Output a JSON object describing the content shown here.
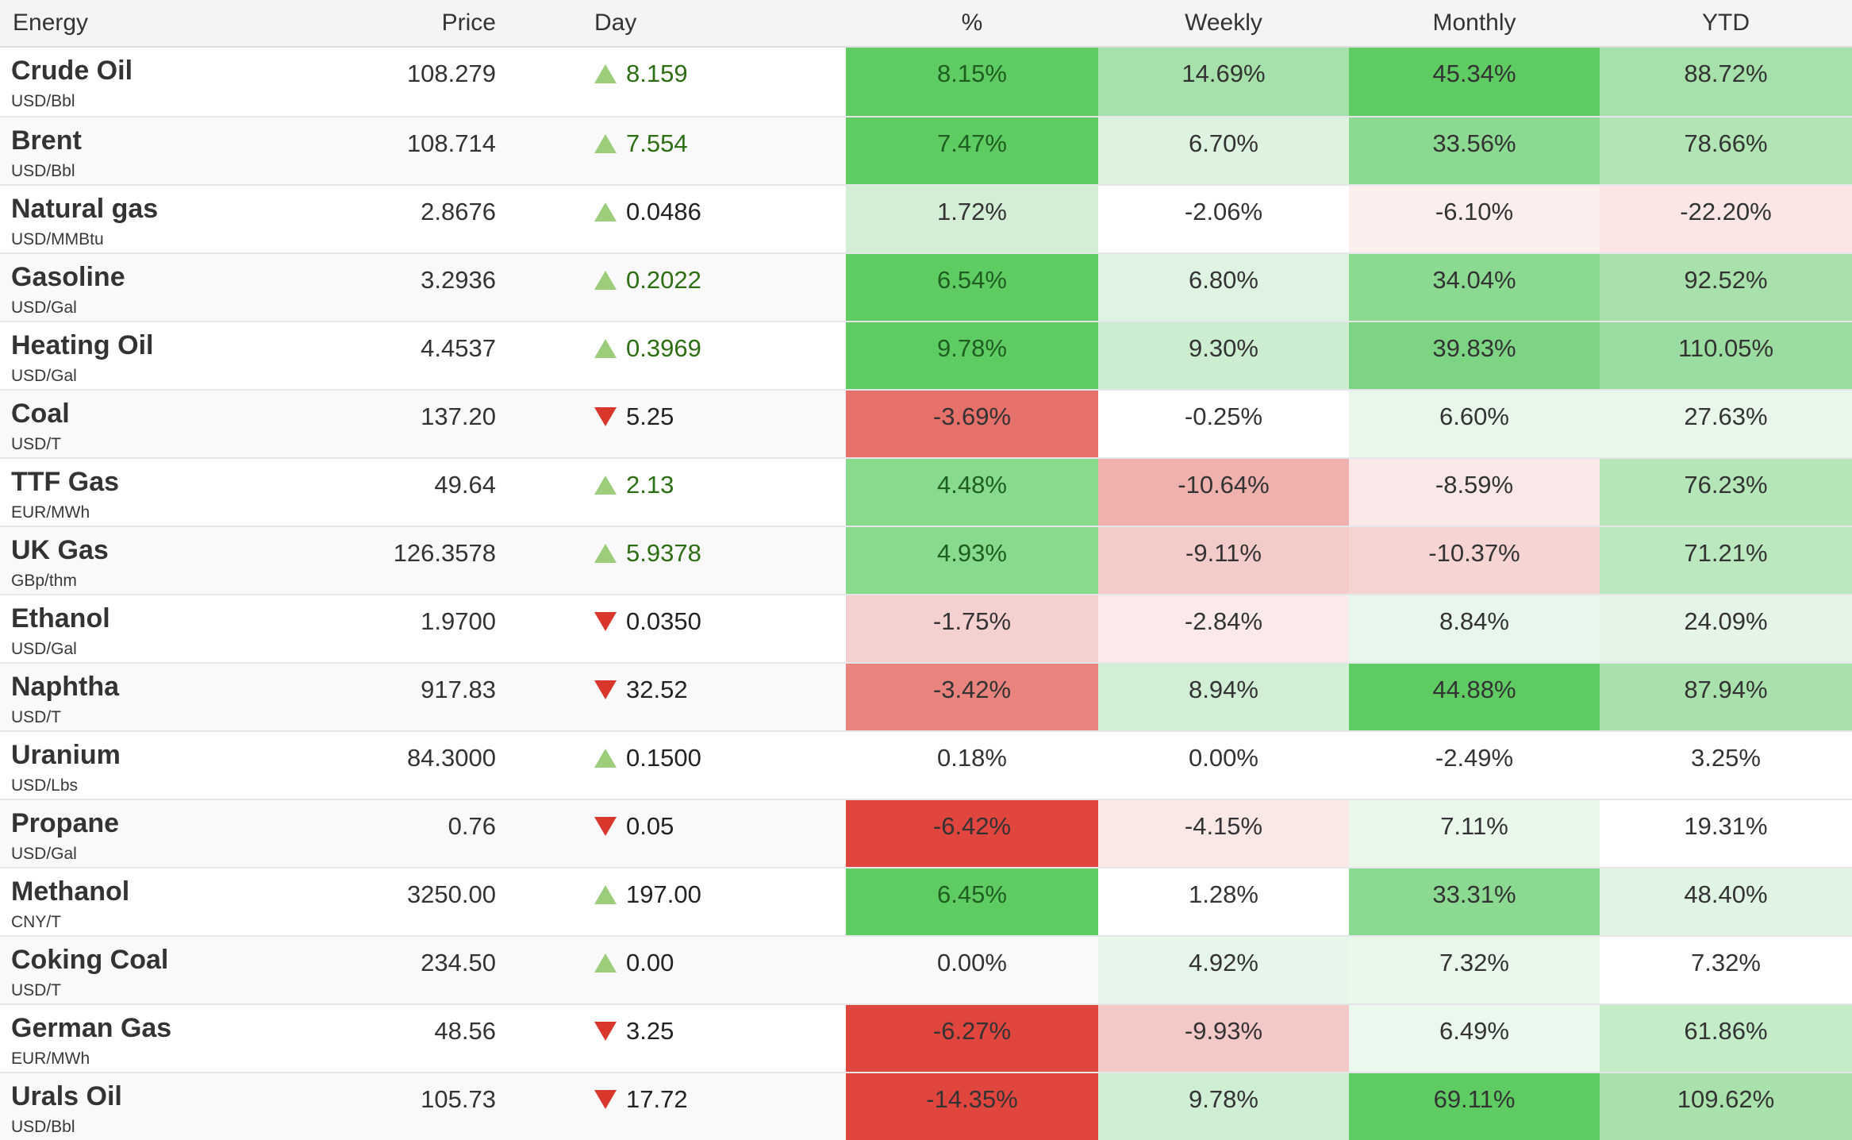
{
  "table": {
    "columns": {
      "energy": "Energy",
      "price": "Price",
      "day": "Day",
      "pct": "%",
      "weekly": "Weekly",
      "monthly": "Monthly",
      "ytd": "YTD"
    },
    "colors": {
      "page_bg": "#ffffff",
      "header_bg": "#f4f4f4",
      "header_border": "#d9dbdc",
      "row_alt_bg": "#f9f9f9",
      "row_border": "#e4e6e7",
      "text_primary": "#333333",
      "day_up_text_green": "#2d6e15",
      "day_text_dark": "#222222",
      "pct_green_text": "#1e5e20",
      "triangle_up": "#9bcd7b",
      "triangle_down": "#d9362c",
      "heat_green_strong": "#5ecc62",
      "heat_red_strong": "#e0453e"
    },
    "rows": [
      {
        "name": "Crude Oil",
        "unit": "USD/Bbl",
        "price": "108.279",
        "day": {
          "dir": "up",
          "value": "8.159",
          "fg": "green"
        },
        "cells": [
          {
            "v": "8.15%",
            "bg": "#5ecc62",
            "fg": "green"
          },
          {
            "v": "14.69%",
            "bg": "#a6e0aa",
            "fg": "dark"
          },
          {
            "v": "45.34%",
            "bg": "#5ecc62",
            "fg": "dark"
          },
          {
            "v": "88.72%",
            "bg": "#a6e0aa",
            "fg": "dark"
          }
        ]
      },
      {
        "name": "Brent",
        "unit": "USD/Bbl",
        "price": "108.714",
        "day": {
          "dir": "up",
          "value": "7.554",
          "fg": "green"
        },
        "cells": [
          {
            "v": "7.47%",
            "bg": "#5ecc62",
            "fg": "green"
          },
          {
            "v": "6.70%",
            "bg": "#ddf3e0",
            "fg": "dark"
          },
          {
            "v": "33.56%",
            "bg": "#8cd991",
            "fg": "dark"
          },
          {
            "v": "78.66%",
            "bg": "#b2e5b6",
            "fg": "dark"
          }
        ]
      },
      {
        "name": "Natural gas",
        "unit": "USD/MMBtu",
        "price": "2.8676",
        "day": {
          "dir": "up",
          "value": "0.0486",
          "fg": "dark"
        },
        "cells": [
          {
            "v": "1.72%",
            "bg": "#d3eed5",
            "fg": "dark"
          },
          {
            "v": "-2.06%",
            "bg": "#ffffff",
            "fg": "dark"
          },
          {
            "v": "-6.10%",
            "bg": "#fbeeed",
            "fg": "dark"
          },
          {
            "v": "-22.20%",
            "bg": "#f9e6e5",
            "fg": "dark"
          }
        ]
      },
      {
        "name": "Gasoline",
        "unit": "USD/Gal",
        "price": "3.2936",
        "day": {
          "dir": "up",
          "value": "0.2022",
          "fg": "green"
        },
        "cells": [
          {
            "v": "6.54%",
            "bg": "#5ecc62",
            "fg": "green"
          },
          {
            "v": "6.80%",
            "bg": "#def3e1",
            "fg": "dark"
          },
          {
            "v": "34.04%",
            "bg": "#8cd991",
            "fg": "dark"
          },
          {
            "v": "92.52%",
            "bg": "#a9e1ad",
            "fg": "dark"
          }
        ]
      },
      {
        "name": "Heating Oil",
        "unit": "USD/Gal",
        "price": "4.4537",
        "day": {
          "dir": "up",
          "value": "0.3969",
          "fg": "green"
        },
        "cells": [
          {
            "v": "9.78%",
            "bg": "#5ecc62",
            "fg": "green"
          },
          {
            "v": "9.30%",
            "bg": "#cdedd0",
            "fg": "dark"
          },
          {
            "v": "39.83%",
            "bg": "#7dd583",
            "fg": "dark"
          },
          {
            "v": "110.05%",
            "bg": "#9bdda0",
            "fg": "dark"
          }
        ]
      },
      {
        "name": "Coal",
        "unit": "USD/T",
        "price": "137.20",
        "day": {
          "dir": "down",
          "value": "5.25",
          "fg": "dark"
        },
        "cells": [
          {
            "v": "-3.69%",
            "bg": "#e5716a",
            "fg": "dark"
          },
          {
            "v": "-0.25%",
            "bg": "#ffffff",
            "fg": "dark"
          },
          {
            "v": "6.60%",
            "bg": "#e9f7eb",
            "fg": "dark"
          },
          {
            "v": "27.63%",
            "bg": "#e8f7ea",
            "fg": "dark"
          }
        ]
      },
      {
        "name": "TTF Gas",
        "unit": "EUR/MWh",
        "price": "49.64",
        "day": {
          "dir": "up",
          "value": "2.13",
          "fg": "green"
        },
        "cells": [
          {
            "v": "4.48%",
            "bg": "#88da8d",
            "fg": "green"
          },
          {
            "v": "-10.64%",
            "bg": "#efb1ad",
            "fg": "dark"
          },
          {
            "v": "-8.59%",
            "bg": "#f9e8e7",
            "fg": "dark"
          },
          {
            "v": "76.23%",
            "bg": "#b5e6b9",
            "fg": "dark"
          }
        ]
      },
      {
        "name": "UK Gas",
        "unit": "GBp/thm",
        "price": "126.3578",
        "day": {
          "dir": "up",
          "value": "5.9378",
          "fg": "green"
        },
        "cells": [
          {
            "v": "4.93%",
            "bg": "#88da8d",
            "fg": "green"
          },
          {
            "v": "-9.11%",
            "bg": "#f3cbc9",
            "fg": "dark"
          },
          {
            "v": "-10.37%",
            "bg": "#f5d4d2",
            "fg": "dark"
          },
          {
            "v": "71.21%",
            "bg": "#bce8c0",
            "fg": "dark"
          }
        ]
      },
      {
        "name": "Ethanol",
        "unit": "USD/Gal",
        "price": "1.9700",
        "day": {
          "dir": "down",
          "value": "0.0350",
          "fg": "dark"
        },
        "cells": [
          {
            "v": "-1.75%",
            "bg": "#f4d0ce",
            "fg": "dark"
          },
          {
            "v": "-2.84%",
            "bg": "#fbeae9",
            "fg": "dark"
          },
          {
            "v": "8.84%",
            "bg": "#e8f7eb",
            "fg": "dark"
          },
          {
            "v": "24.09%",
            "bg": "#e4f5e7",
            "fg": "dark"
          }
        ]
      },
      {
        "name": "Naphtha",
        "unit": "USD/T",
        "price": "917.83",
        "day": {
          "dir": "down",
          "value": "32.52",
          "fg": "dark"
        },
        "cells": [
          {
            "v": "-3.42%",
            "bg": "#e9837d",
            "fg": "dark"
          },
          {
            "v": "8.94%",
            "bg": "#d2eed5",
            "fg": "dark"
          },
          {
            "v": "44.88%",
            "bg": "#5ecc62",
            "fg": "dark"
          },
          {
            "v": "87.94%",
            "bg": "#a9e1ad",
            "fg": "dark"
          }
        ]
      },
      {
        "name": "Uranium",
        "unit": "USD/Lbs",
        "price": "84.3000",
        "day": {
          "dir": "up",
          "value": "0.1500",
          "fg": "dark"
        },
        "cells": [
          {
            "v": "0.18%",
            "bg": "#ffffff",
            "fg": "dark"
          },
          {
            "v": "0.00%",
            "bg": "#ffffff",
            "fg": "dark"
          },
          {
            "v": "-2.49%",
            "bg": "#ffffff",
            "fg": "dark"
          },
          {
            "v": "3.25%",
            "bg": "#ffffff",
            "fg": "dark"
          }
        ]
      },
      {
        "name": "Propane",
        "unit": "USD/Gal",
        "price": "0.76",
        "day": {
          "dir": "down",
          "value": "0.05",
          "fg": "dark"
        },
        "cells": [
          {
            "v": "-6.42%",
            "bg": "#e0453e",
            "fg": "dark"
          },
          {
            "v": "-4.15%",
            "bg": "#fae8e7",
            "fg": "dark"
          },
          {
            "v": "7.11%",
            "bg": "#eaf8ec",
            "fg": "dark"
          },
          {
            "v": "19.31%",
            "bg": "#ffffff",
            "fg": "dark"
          }
        ]
      },
      {
        "name": "Methanol",
        "unit": "CNY/T",
        "price": "3250.00",
        "day": {
          "dir": "up",
          "value": "197.00",
          "fg": "dark"
        },
        "cells": [
          {
            "v": "6.45%",
            "bg": "#5ecc62",
            "fg": "green"
          },
          {
            "v": "1.28%",
            "bg": "#ffffff",
            "fg": "dark"
          },
          {
            "v": "33.31%",
            "bg": "#8cd991",
            "fg": "dark"
          },
          {
            "v": "48.40%",
            "bg": "#dff4e2",
            "fg": "dark"
          }
        ]
      },
      {
        "name": "Coking Coal",
        "unit": "USD/T",
        "price": "234.50",
        "day": {
          "dir": "up",
          "value": "0.00",
          "fg": "dark"
        },
        "cells": [
          {
            "v": "0.00%",
            "bg": "#fafafa",
            "fg": "dark"
          },
          {
            "v": "4.92%",
            "bg": "#e7f6ea",
            "fg": "dark"
          },
          {
            "v": "7.32%",
            "bg": "#eaf8ec",
            "fg": "dark"
          },
          {
            "v": "7.32%",
            "bg": "#ffffff",
            "fg": "dark"
          }
        ]
      },
      {
        "name": "German Gas",
        "unit": "EUR/MWh",
        "price": "48.56",
        "day": {
          "dir": "down",
          "value": "3.25",
          "fg": "dark"
        },
        "cells": [
          {
            "v": "-6.27%",
            "bg": "#e0453e",
            "fg": "dark"
          },
          {
            "v": "-9.93%",
            "bg": "#f3c9c7",
            "fg": "dark"
          },
          {
            "v": "6.49%",
            "bg": "#ebf8ee",
            "fg": "dark"
          },
          {
            "v": "61.86%",
            "bg": "#c5ecc9",
            "fg": "dark"
          }
        ]
      },
      {
        "name": "Urals Oil",
        "unit": "USD/Bbl",
        "price": "105.73",
        "day": {
          "dir": "down",
          "value": "17.72",
          "fg": "dark"
        },
        "cells": [
          {
            "v": "-14.35%",
            "bg": "#e0453e",
            "fg": "dark"
          },
          {
            "v": "9.78%",
            "bg": "#d0eed4",
            "fg": "dark"
          },
          {
            "v": "69.11%",
            "bg": "#5ecc62",
            "fg": "dark"
          },
          {
            "v": "109.62%",
            "bg": "#a9e1ad",
            "fg": "dark"
          }
        ]
      }
    ]
  }
}
